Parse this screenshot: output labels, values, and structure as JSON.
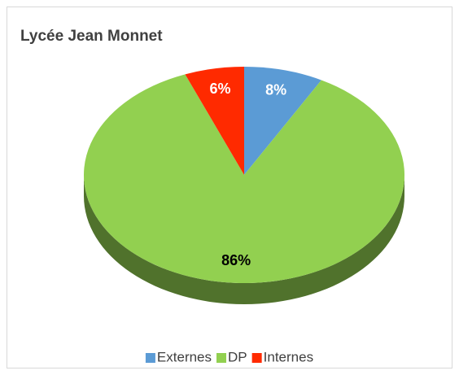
{
  "chart_data": {
    "type": "pie",
    "title": "Lycée Jean Monnet",
    "categories": [
      "Externes",
      "DP",
      "Internes"
    ],
    "values": [
      8,
      86,
      6
    ],
    "value_labels": [
      "8%",
      "86%",
      "6%"
    ],
    "colors": [
      "#5b9bd5",
      "#92d050",
      "#ff2a00"
    ],
    "value_label_colors": [
      "#ffffff",
      "#000000",
      "#ffffff"
    ],
    "legend": "bottom"
  }
}
